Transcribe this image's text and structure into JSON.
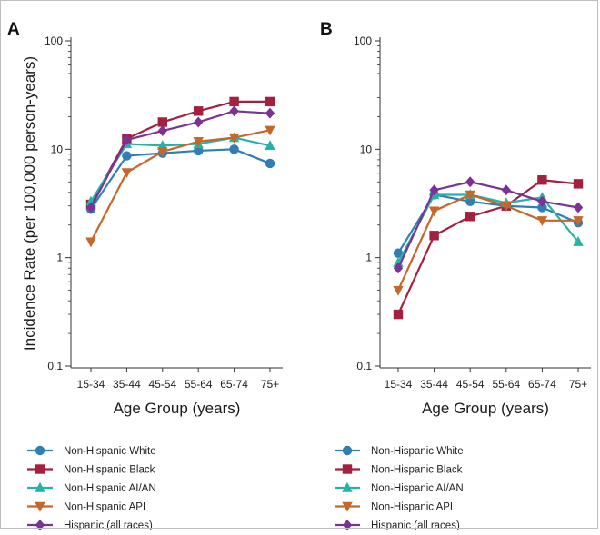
{
  "chart_data": [
    {
      "panel_label": "A",
      "type": "line",
      "y_scale": "log",
      "ylim": [
        0.1,
        100
      ],
      "yticks": [
        "100",
        "10",
        "1",
        "0.1"
      ],
      "ylabel": "Incidence Rate (per 100,000 person-years)",
      "xlabel": "Age Group (years)",
      "categories": [
        "15-34",
        "35-44",
        "45-54",
        "55-64",
        "65-74",
        "75+"
      ],
      "series": [
        {
          "name": "Non-Hispanic White",
          "color": "#2f7fb5",
          "marker": "circle",
          "values": [
            2.8,
            8.7,
            9.2,
            9.7,
            10.0,
            7.4
          ]
        },
        {
          "name": "Non-Hispanic Black",
          "color": "#a3203f",
          "marker": "square",
          "values": [
            3.1,
            12.5,
            17.8,
            22.5,
            27.5,
            27.5
          ]
        },
        {
          "name": "Non-Hispanic AI/AN",
          "color": "#26b3a7",
          "marker": "triangle-up",
          "values": [
            3.3,
            11.2,
            10.8,
            11.2,
            12.8,
            10.8
          ]
        },
        {
          "name": "Non-Hispanic API",
          "color": "#c5662a",
          "marker": "triangle-down",
          "values": [
            1.4,
            6.1,
            9.5,
            11.8,
            12.8,
            15.0
          ]
        },
        {
          "name": "Hispanic (all races)",
          "color": "#7b3294",
          "marker": "diamond",
          "values": [
            2.9,
            12.2,
            14.8,
            17.8,
            22.5,
            21.5
          ]
        }
      ]
    },
    {
      "panel_label": "B",
      "type": "line",
      "y_scale": "log",
      "ylim": [
        0.1,
        100
      ],
      "yticks": [
        "100",
        "10",
        "1",
        "0.1"
      ],
      "ylabel": "",
      "xlabel": "Age Group (years)",
      "categories": [
        "15-34",
        "35-44",
        "45-54",
        "55-64",
        "65-74",
        "75+"
      ],
      "series": [
        {
          "name": "Non-Hispanic White",
          "color": "#2f7fb5",
          "marker": "circle",
          "values": [
            1.1,
            3.8,
            3.3,
            3.0,
            2.9,
            2.1
          ]
        },
        {
          "name": "Non-Hispanic Black",
          "color": "#a3203f",
          "marker": "square",
          "values": [
            0.3,
            1.6,
            2.4,
            3.0,
            5.2,
            4.8
          ]
        },
        {
          "name": "Non-Hispanic AI/AN",
          "color": "#26b3a7",
          "marker": "triangle-up",
          "values": [
            0.9,
            3.8,
            3.8,
            3.2,
            3.6,
            1.4
          ]
        },
        {
          "name": "Non-Hispanic API",
          "color": "#c5662a",
          "marker": "triangle-down",
          "values": [
            0.5,
            2.7,
            3.8,
            3.0,
            2.2,
            2.2
          ]
        },
        {
          "name": "Hispanic (all races)",
          "color": "#7b3294",
          "marker": "diamond",
          "values": [
            0.8,
            4.2,
            5.0,
            4.2,
            3.3,
            2.9
          ]
        }
      ]
    }
  ]
}
